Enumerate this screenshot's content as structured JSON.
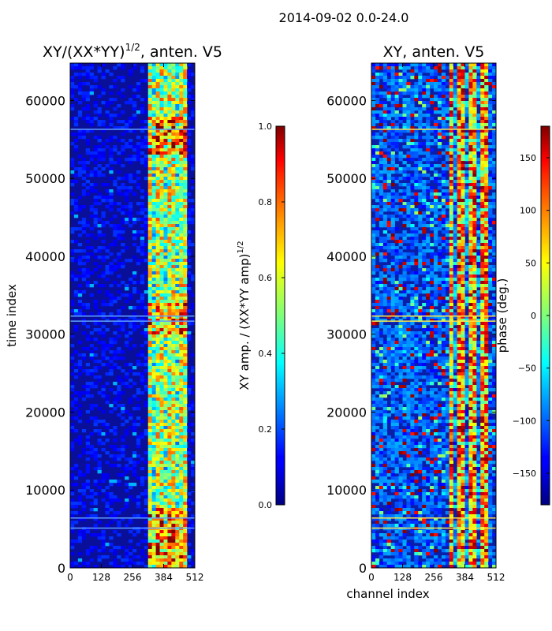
{
  "suptitle": "2014-09-02 0.0-24.0",
  "chart_data": [
    {
      "type": "heatmap",
      "title": "XY/(XX*YY)^{1/2}, anten. V5",
      "title_main": "XY/(XX*YY)",
      "title_sup": "1/2",
      "title_rest": ", anten. V5",
      "ylabel": "time index",
      "xlabel": "",
      "xlim": [
        0,
        512
      ],
      "ylim": [
        0,
        64800
      ],
      "xticks": [
        0,
        128,
        256,
        384,
        512
      ],
      "yticks": [
        0,
        10000,
        20000,
        30000,
        40000,
        50000,
        60000
      ],
      "colormap": "jet",
      "colorbar": {
        "label": "XY amp. / (XX*YY amp)^{1/2}",
        "label_main": "XY amp. / (XX*YY amp)",
        "label_sup": "1/2",
        "range": [
          0.0,
          1.0
        ],
        "ticks": [
          0.0,
          0.2,
          0.4,
          0.6,
          0.8,
          1.0
        ],
        "tick_labels": [
          "0.0",
          "0.2",
          "0.4",
          "0.6",
          "0.8",
          "1.0"
        ]
      }
    },
    {
      "type": "heatmap",
      "title": "XY, anten. V5",
      "ylabel": "",
      "xlabel": "channel index",
      "xlim": [
        0,
        512
      ],
      "ylim": [
        0,
        64800
      ],
      "xticks": [
        0,
        128,
        256,
        384,
        512
      ],
      "yticks": [
        0,
        10000,
        20000,
        30000,
        40000,
        50000,
        60000
      ],
      "colormap": "jet",
      "colorbar": {
        "label": "phase (deg.)",
        "range": [
          -180,
          180
        ],
        "ticks": [
          -150,
          -100,
          -50,
          0,
          50,
          100,
          150
        ],
        "tick_labels": [
          "−150",
          "−100",
          "−50",
          "0",
          "50",
          "100",
          "150"
        ]
      }
    }
  ]
}
